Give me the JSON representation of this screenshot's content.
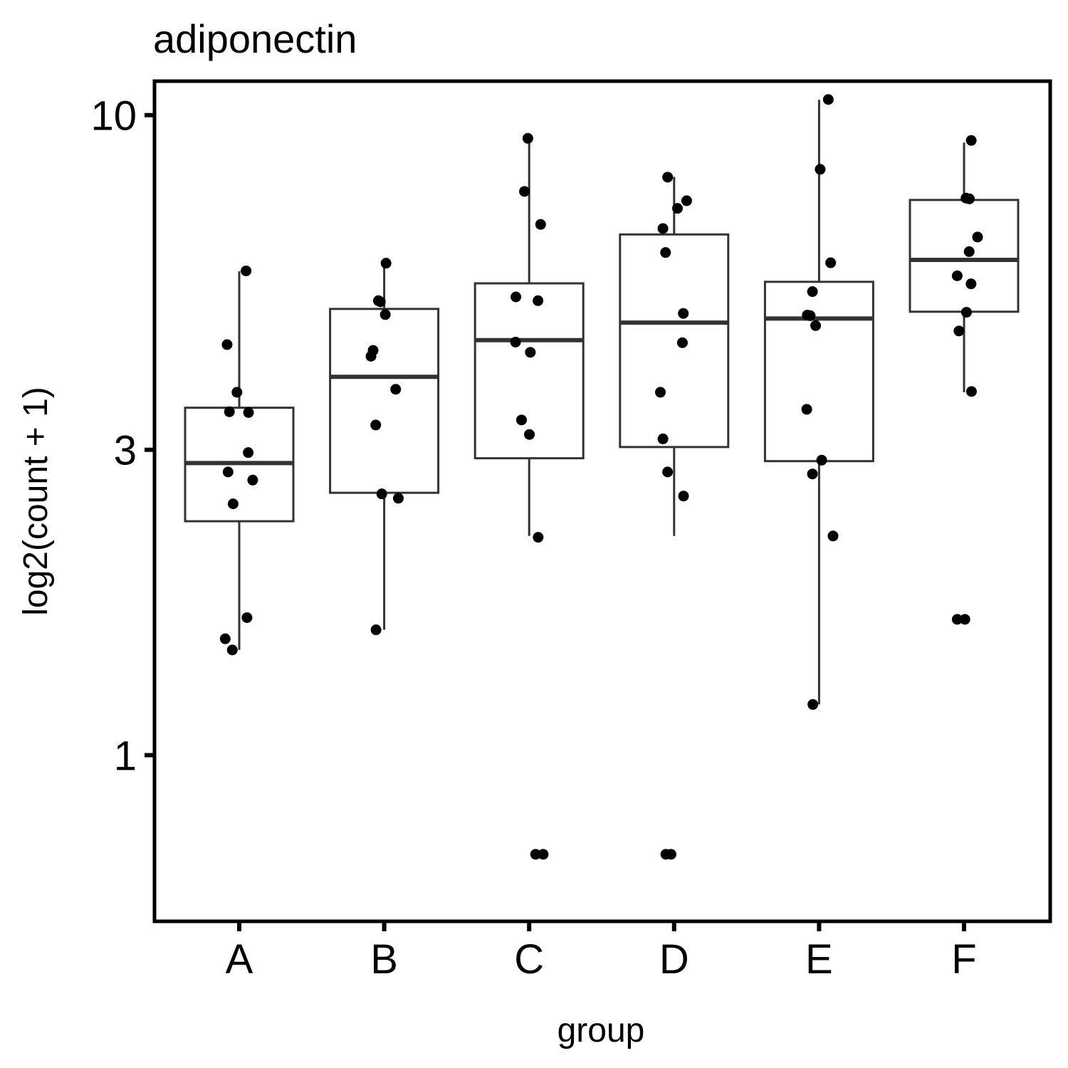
{
  "chart_data": {
    "type": "box",
    "title": "adiponectin",
    "xlabel": "group",
    "ylabel": "log2(count + 1)",
    "y_scale": "log",
    "ylim": [
      0.55,
      11.3
    ],
    "y_ticks": [
      {
        "value": 1,
        "label": "1"
      },
      {
        "value": 3,
        "label": "3"
      },
      {
        "value": 10,
        "label": "10"
      }
    ],
    "grid": false,
    "categories": [
      "A",
      "B",
      "C",
      "D",
      "E",
      "F"
    ],
    "boxes": [
      {
        "group": "A",
        "whisker_low": 1.46,
        "q1": 2.32,
        "median": 2.86,
        "q3": 3.49,
        "whisker_high": 5.7
      },
      {
        "group": "B",
        "whisker_low": 1.57,
        "q1": 2.57,
        "median": 3.9,
        "q3": 4.98,
        "whisker_high": 5.86
      },
      {
        "group": "C",
        "whisker_low": 2.2,
        "q1": 2.91,
        "median": 4.45,
        "q3": 5.46,
        "whisker_high": 9.12
      },
      {
        "group": "D",
        "whisker_low": 2.2,
        "q1": 3.03,
        "median": 4.74,
        "q3": 6.51,
        "whisker_high": 8.01
      },
      {
        "group": "E",
        "whisker_low": 1.2,
        "q1": 2.88,
        "median": 4.81,
        "q3": 5.49,
        "whisker_high": 10.57
      },
      {
        "group": "F",
        "whisker_low": 3.69,
        "q1": 4.93,
        "median": 5.94,
        "q3": 7.37,
        "whisker_high": 9.06
      }
    ],
    "points": [
      {
        "group": "A",
        "values": [
          5.71,
          4.38,
          3.69,
          3.43,
          3.44,
          2.97,
          2.77,
          2.69,
          2.47,
          1.64,
          1.52,
          1.46
        ]
      },
      {
        "group": "B",
        "values": [
          5.87,
          5.11,
          5.13,
          4.88,
          4.29,
          4.2,
          3.73,
          3.28,
          2.56,
          2.52,
          1.57
        ]
      },
      {
        "group": "C",
        "values": [
          9.2,
          7.6,
          6.75,
          5.2,
          5.13,
          4.42,
          4.26,
          3.34,
          3.17,
          2.19,
          0.7,
          0.7
        ]
      },
      {
        "group": "D",
        "values": [
          8.0,
          7.35,
          7.15,
          6.65,
          6.1,
          4.9,
          4.41,
          3.69,
          3.12,
          2.77,
          2.54,
          0.7,
          0.7
        ]
      },
      {
        "group": "E",
        "values": [
          10.58,
          8.23,
          5.88,
          5.3,
          4.86,
          4.87,
          4.69,
          3.47,
          2.89,
          2.75,
          2.2,
          1.2
        ]
      },
      {
        "group": "F",
        "values": [
          9.13,
          7.42,
          7.4,
          6.45,
          6.12,
          5.61,
          5.45,
          4.92,
          4.6,
          3.7,
          1.63,
          1.63
        ]
      }
    ]
  }
}
